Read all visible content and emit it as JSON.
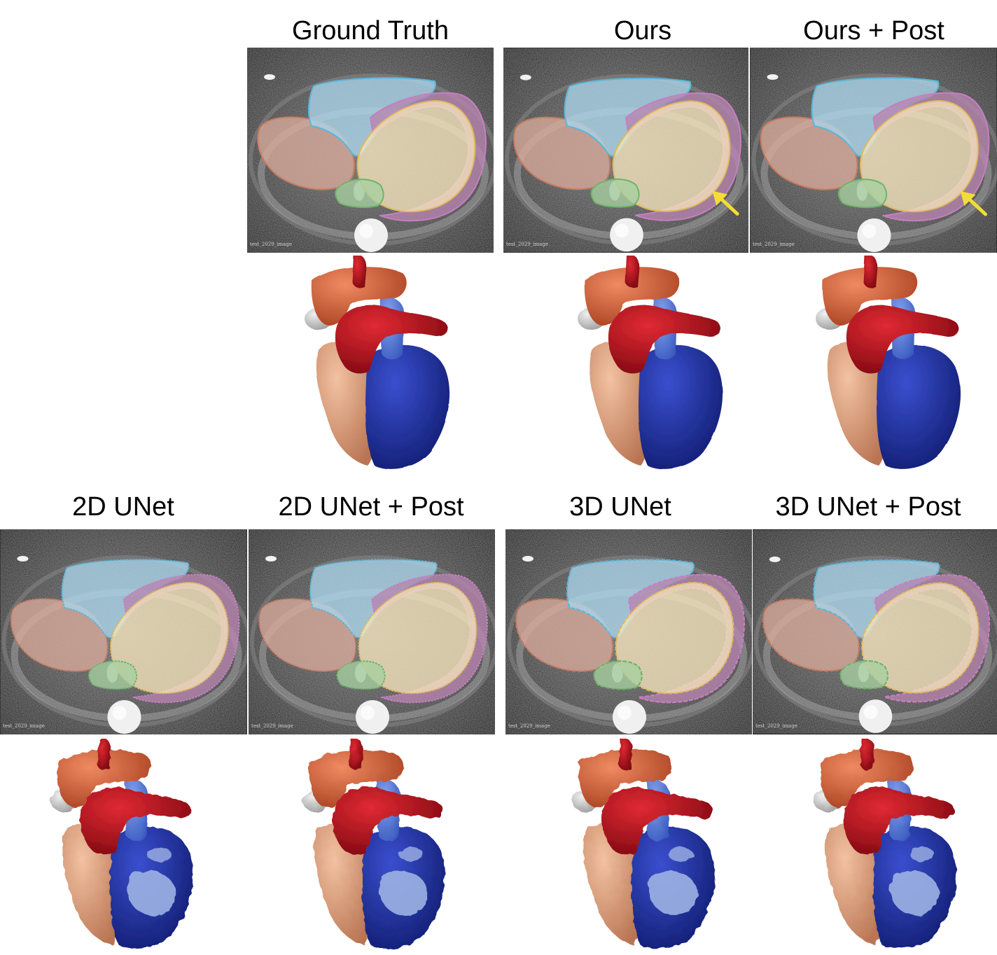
{
  "panels": [
    {
      "title": "Ground Truth",
      "slice_label": "test_2029_image",
      "variant": "gt",
      "arrow": false
    },
    {
      "title": "Ours",
      "slice_label": "test_2029_image",
      "variant": "ours",
      "arrow": true
    },
    {
      "title": "Ours + Post",
      "slice_label": "test_2029_image",
      "variant": "ours",
      "arrow": true
    },
    {
      "title": "2D UNet",
      "slice_label": "test_2029_image",
      "variant": "unet2d",
      "arrow": false
    },
    {
      "title": "2D UNet + Post",
      "slice_label": "test_2029_image",
      "variant": "unet2d",
      "arrow": false
    },
    {
      "title": "3D UNet",
      "slice_label": "test_2029_image",
      "variant": "unet3d",
      "arrow": false
    },
    {
      "title": "3D UNet + Post",
      "slice_label": "test_2029_image",
      "variant": "unet3d",
      "arrow": false
    }
  ],
  "colors": {
    "background_mri": "#2a2a2a",
    "right_atrium_fill": "#d9a99a",
    "right_atrium_edge": "#c77a5e",
    "right_ventricle_fill": "#a9d5ea",
    "right_ventricle_edge": "#5bb6d8",
    "left_ventricle_fill": "#f5e4bb",
    "left_ventricle_edge": "#e0b95b",
    "myocardium_fill": "#b784b0",
    "myocardium_edge": "#c77fc1",
    "left_atrium_fill": "#a7cfa0",
    "left_atrium_edge": "#6fb46a",
    "arrow": "#f2dd35",
    "mesh_orange": "#d2603d",
    "mesh_red": "#b80f1c",
    "mesh_blue": "#2233a6",
    "mesh_lightblue": "#5b7fd8",
    "mesh_pale_blue": "#9db2e3",
    "mesh_tan": "#e3a07e",
    "mesh_grey": "#cfcfcf"
  }
}
